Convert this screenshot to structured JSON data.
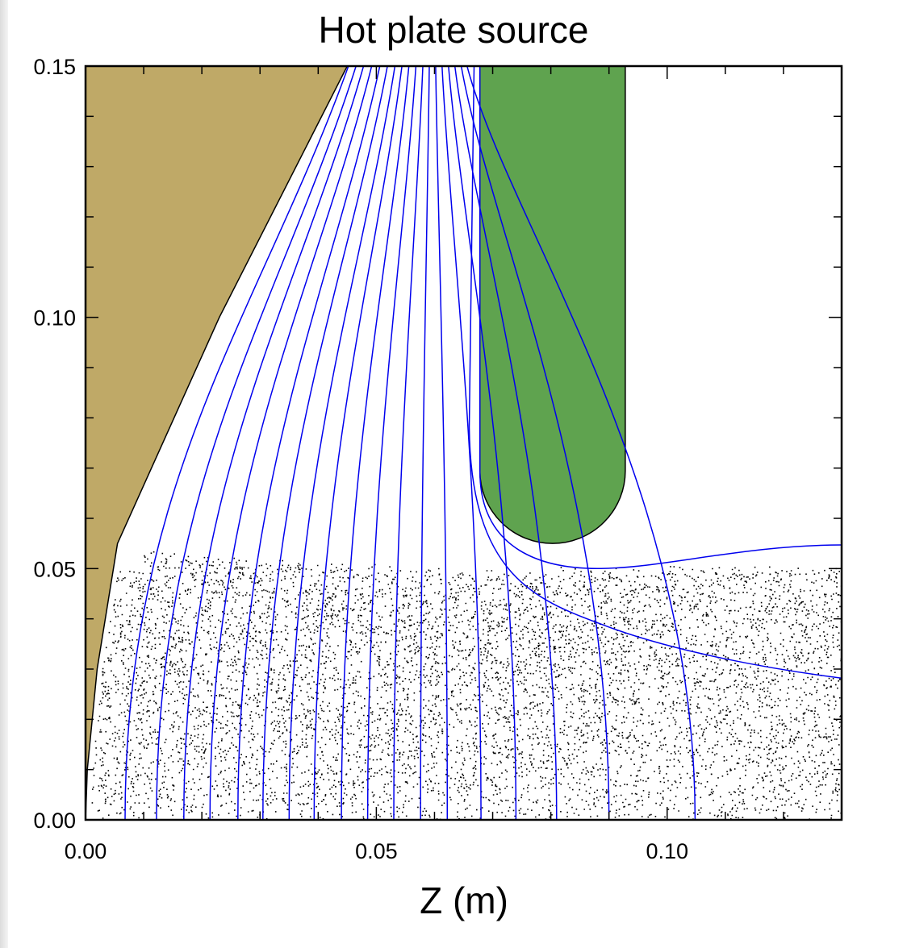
{
  "chart_data": {
    "type": "contour",
    "title": "Hot plate source",
    "xlabel": "Z (m)",
    "ylabel": "",
    "xlim": [
      0.0,
      0.13
    ],
    "ylim": [
      0.0,
      0.15
    ],
    "x_ticks": [
      0.0,
      0.05,
      0.1
    ],
    "x_tick_labels": [
      "0.00",
      "0.05",
      "0.10"
    ],
    "y_ticks": [
      0.0,
      0.05,
      0.1,
      0.15
    ],
    "y_tick_labels": [
      "0.00",
      "0.05",
      "0.10",
      "0.15"
    ],
    "grid": false,
    "regions": [
      {
        "name": "electrode",
        "color": "#bfa967",
        "outline": [
          [
            0.0,
            0.0
          ],
          [
            0.0,
            0.15
          ],
          [
            0.045,
            0.15
          ],
          [
            0.023,
            0.1
          ],
          [
            0.0055,
            0.055
          ],
          [
            0.002,
            0.03
          ],
          [
            0.0003,
            0.01
          ]
        ]
      },
      {
        "name": "plate",
        "color": "#5fa34f",
        "x_range": [
          0.0678,
          0.0928
        ],
        "y_bottom": 0.055,
        "y_top": 0.15
      }
    ],
    "particles": {
      "color": "#000000",
      "y_range": [
        0.0,
        0.054
      ],
      "boundary": [
        [
          0.01,
          0.054
        ],
        [
          0.04,
          0.052
        ],
        [
          0.07,
          0.05
        ],
        [
          0.1,
          0.051
        ],
        [
          0.13,
          0.051
        ]
      ]
    },
    "equipotential_color": "#0000ee",
    "equipotentials": [
      {
        "top": 0.0452,
        "bottom": 0.0068
      },
      {
        "top": 0.0465,
        "bottom": 0.0122
      },
      {
        "top": 0.0478,
        "bottom": 0.0169
      },
      {
        "top": 0.0492,
        "bottom": 0.0214
      },
      {
        "top": 0.0506,
        "bottom": 0.0262
      },
      {
        "top": 0.0519,
        "bottom": 0.0305
      },
      {
        "top": 0.0532,
        "bottom": 0.035
      },
      {
        "top": 0.0544,
        "bottom": 0.0393
      },
      {
        "top": 0.0556,
        "bottom": 0.044
      },
      {
        "top": 0.0568,
        "bottom": 0.0485
      },
      {
        "top": 0.058,
        "bottom": 0.053
      },
      {
        "top": 0.0591,
        "bottom": 0.0576
      },
      {
        "top": 0.0602,
        "bottom": 0.0622
      },
      {
        "top": 0.0613,
        "bottom": 0.068
      },
      {
        "top": 0.0624,
        "bottom": 0.074
      },
      {
        "top": 0.0635,
        "bottom": 0.081
      },
      {
        "top": 0.0646,
        "bottom": 0.09
      },
      {
        "top": 0.0656,
        "bottom": 0.1048
      },
      {
        "top": 0.0668,
        "right_y": 0.0282
      },
      {
        "top": 0.0678,
        "right_y": 0.0547
      }
    ]
  }
}
